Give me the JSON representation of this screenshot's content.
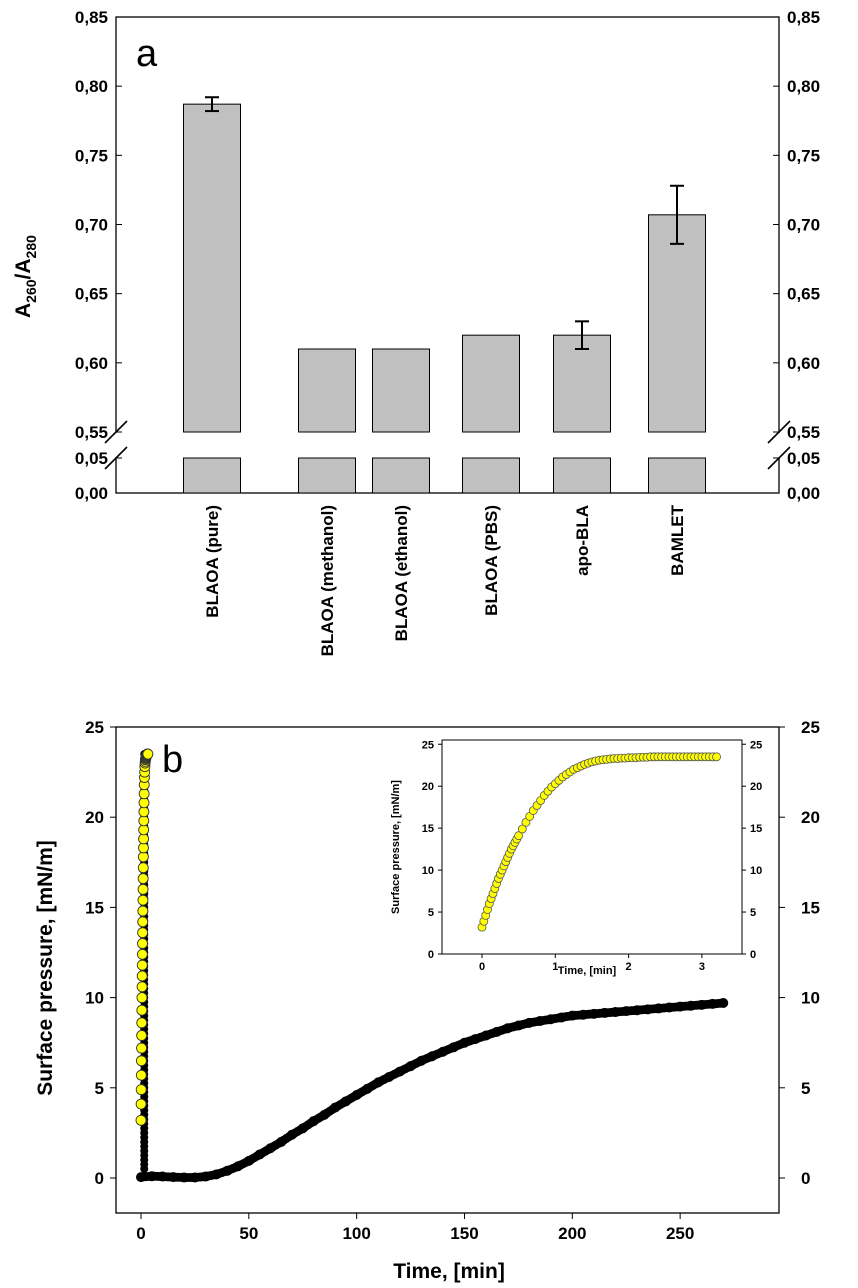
{
  "chart_data": [
    {
      "type": "bar",
      "panel_label": "a",
      "ylabel_main": "A",
      "ylabel_sub1": "260",
      "ylabel_slash": "/A",
      "ylabel_sub2": "280",
      "categories": [
        "BLAOA (pure)",
        "BLAOA (methanol)",
        "BLAOA (ethanol)",
        "BLAOA (PBS)",
        "apo-BLA",
        "BAMLET"
      ],
      "values": [
        0.787,
        0.61,
        0.61,
        0.62,
        0.62,
        0.707
      ],
      "errors": [
        0.005,
        0,
        0,
        0,
        0.01,
        0.021
      ],
      "upper_ylim": [
        0.55,
        0.85
      ],
      "lower_ylim": [
        0.0,
        0.05
      ],
      "upper_ticks": [
        "0,55",
        "0,60",
        "0,65",
        "0,70",
        "0,75",
        "0,80",
        "0,85"
      ],
      "lower_ticks": [
        "0,00",
        "0,05"
      ],
      "bar_color": "#c0c0c0"
    },
    {
      "type": "scatter",
      "panel_label": "b",
      "xlabel": "Time, [min]",
      "ylabel": "Surface pressure, [mN/m]",
      "xlim": [
        -8,
        290
      ],
      "ylim": [
        -1,
        25
      ],
      "x_ticks": [
        "0",
        "50",
        "100",
        "150",
        "200",
        "250"
      ],
      "y_ticks": [
        "0",
        "5",
        "10",
        "15",
        "20",
        "25"
      ],
      "series": [
        {
          "name": "black",
          "color": "#000000",
          "x": [
            0,
            5,
            10,
            15,
            20,
            25,
            30,
            35,
            40,
            45,
            50,
            55,
            60,
            65,
            70,
            75,
            80,
            85,
            90,
            95,
            100,
            105,
            110,
            115,
            120,
            125,
            130,
            135,
            140,
            145,
            150,
            155,
            160,
            165,
            170,
            175,
            180,
            185,
            190,
            195,
            200,
            205,
            210,
            215,
            220,
            225,
            230,
            235,
            240,
            245,
            250,
            255,
            260,
            265,
            270
          ],
          "y": [
            0.05,
            0.1,
            0.08,
            0.05,
            0.03,
            0.03,
            0.08,
            0.2,
            0.4,
            0.65,
            0.95,
            1.3,
            1.65,
            2.0,
            2.4,
            2.75,
            3.15,
            3.5,
            3.9,
            4.25,
            4.6,
            4.95,
            5.3,
            5.6,
            5.9,
            6.2,
            6.5,
            6.75,
            7.0,
            7.25,
            7.5,
            7.7,
            7.9,
            8.1,
            8.3,
            8.45,
            8.6,
            8.7,
            8.8,
            8.9,
            9.0,
            9.05,
            9.1,
            9.15,
            9.2,
            9.25,
            9.3,
            9.35,
            9.4,
            9.45,
            9.5,
            9.55,
            9.6,
            9.65,
            9.7
          ]
        },
        {
          "name": "yellow",
          "color": "#ffff00",
          "x": [
            0.0,
            0.05,
            0.1,
            0.15,
            0.2,
            0.25,
            0.3,
            0.35,
            0.4,
            0.45,
            0.5,
            0.55,
            0.6,
            0.65,
            0.7,
            0.75,
            0.8,
            0.85,
            0.9,
            0.95,
            1.0,
            1.05,
            1.1,
            1.15,
            1.2,
            1.25,
            1.3,
            1.35,
            1.4,
            1.45,
            1.5,
            1.6,
            1.7,
            1.8,
            1.9,
            2.0,
            2.1,
            2.2,
            2.3,
            2.4,
            2.5,
            2.6,
            2.7,
            2.8,
            2.9,
            3.0,
            3.1,
            3.2
          ],
          "y": [
            3.2,
            4.1,
            4.9,
            5.7,
            6.5,
            7.2,
            7.9,
            8.6,
            9.3,
            10.0,
            10.6,
            11.2,
            11.8,
            12.4,
            13.0,
            13.6,
            14.2,
            14.8,
            15.4,
            16.0,
            16.6,
            17.2,
            17.8,
            18.3,
            18.8,
            19.3,
            19.8,
            20.3,
            20.8,
            21.3,
            21.8,
            22.2,
            22.5,
            22.8,
            23.0,
            23.1,
            23.2,
            23.25,
            23.3,
            23.35,
            23.4,
            23.4,
            23.45,
            23.45,
            23.5,
            23.5,
            23.5,
            23.5
          ]
        }
      ],
      "inset": {
        "type": "scatter",
        "xlabel": "Time, [min]",
        "ylabel": "Surface pressure, [mN/m]",
        "xlim": [
          -0.6,
          3.5
        ],
        "ylim": [
          0,
          25
        ],
        "x_ticks": [
          "0",
          "1",
          "2",
          "3"
        ],
        "y_ticks": [
          "0",
          "5",
          "10",
          "15",
          "20",
          "25"
        ],
        "color": "#ffff00",
        "x": [
          0.0,
          0.025,
          0.05,
          0.075,
          0.1,
          0.125,
          0.15,
          0.175,
          0.2,
          0.225,
          0.25,
          0.275,
          0.3,
          0.325,
          0.35,
          0.375,
          0.4,
          0.425,
          0.45,
          0.475,
          0.5,
          0.55,
          0.6,
          0.65,
          0.7,
          0.75,
          0.8,
          0.85,
          0.9,
          0.95,
          1.0,
          1.05,
          1.1,
          1.15,
          1.2,
          1.25,
          1.3,
          1.35,
          1.4,
          1.45,
          1.5,
          1.55,
          1.6,
          1.65,
          1.7,
          1.75,
          1.8,
          1.85,
          1.9,
          1.95,
          2.0,
          2.05,
          2.1,
          2.15,
          2.2,
          2.25,
          2.3,
          2.35,
          2.4,
          2.45,
          2.5,
          2.55,
          2.6,
          2.65,
          2.7,
          2.75,
          2.8,
          2.85,
          2.9,
          2.95,
          3.0,
          3.05,
          3.1,
          3.15,
          3.2
        ],
        "y": [
          3.2,
          3.9,
          4.6,
          5.3,
          6.0,
          6.6,
          7.2,
          7.8,
          8.4,
          9.0,
          9.5,
          10.0,
          10.5,
          11.0,
          11.5,
          12.0,
          12.5,
          12.9,
          13.3,
          13.7,
          14.1,
          14.9,
          15.7,
          16.4,
          17.1,
          17.7,
          18.3,
          18.9,
          19.4,
          19.9,
          20.3,
          20.7,
          21.1,
          21.4,
          21.7,
          22.0,
          22.2,
          22.4,
          22.6,
          22.75,
          22.9,
          23.0,
          23.1,
          23.15,
          23.2,
          23.25,
          23.3,
          23.3,
          23.35,
          23.35,
          23.4,
          23.4,
          23.4,
          23.45,
          23.45,
          23.45,
          23.5,
          23.5,
          23.5,
          23.5,
          23.5,
          23.5,
          23.5,
          23.5,
          23.5,
          23.5,
          23.5,
          23.5,
          23.5,
          23.5,
          23.5,
          23.5,
          23.5,
          23.5,
          23.5
        ]
      }
    }
  ]
}
